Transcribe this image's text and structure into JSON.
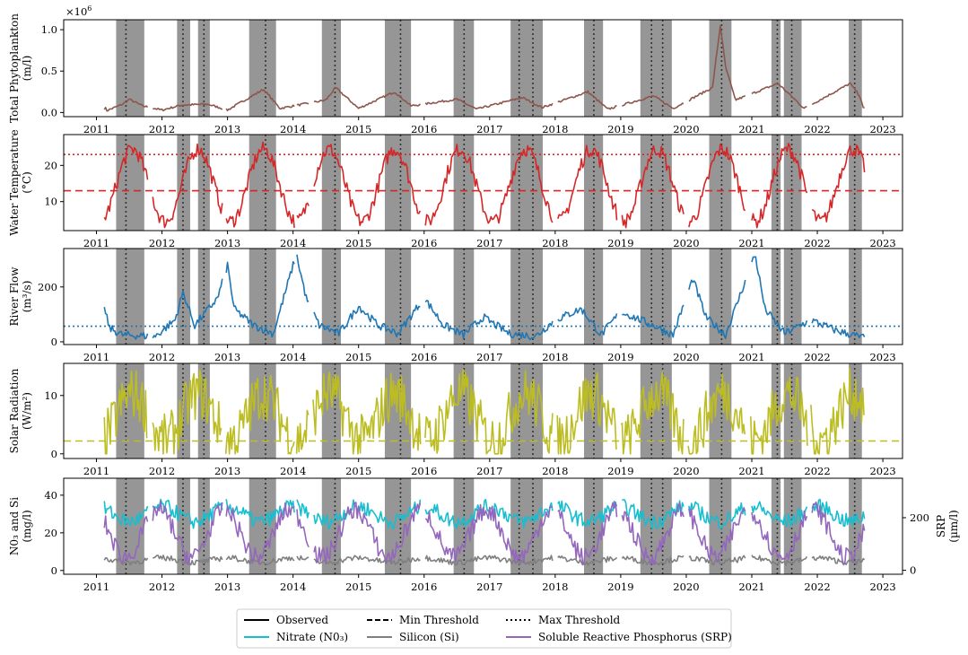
{
  "chart_data": [
    {
      "type": "line",
      "title": "",
      "xlabel": "",
      "ylabel": "Total Phytoplankton",
      "yunit": "(m/l)",
      "yscale_label": "×10^6",
      "x_ticks": [
        "2011",
        "2012",
        "2013",
        "2014",
        "2015",
        "2016",
        "2017",
        "2018",
        "2019",
        "2020",
        "2021",
        "2022",
        "2023"
      ],
      "y_ticks": [
        "0.0",
        "0.5",
        "1.0"
      ],
      "ylim": [
        -0.05,
        1.12
      ],
      "xlim": [
        2010.5,
        2023.3
      ],
      "grid": false,
      "series": [
        {
          "color": "#8c564b",
          "style": "observed",
          "values_summary": "baseline ~0.02-0.05 with seasonal peaks",
          "points": [
            [
              2011.15,
              0.02
            ],
            [
              2011.4,
              0.1
            ],
            [
              2011.5,
              0.16
            ],
            [
              2011.7,
              0.08
            ],
            [
              2012.0,
              0.03
            ],
            [
              2012.3,
              0.09
            ],
            [
              2012.7,
              0.1
            ],
            [
              2013.0,
              0.03
            ],
            [
              2013.55,
              0.28
            ],
            [
              2013.8,
              0.05
            ],
            [
              2014.5,
              0.15
            ],
            [
              2014.65,
              0.3
            ],
            [
              2015.0,
              0.05
            ],
            [
              2015.55,
              0.25
            ],
            [
              2015.8,
              0.08
            ],
            [
              2016.5,
              0.16
            ],
            [
              2016.8,
              0.04
            ],
            [
              2017.5,
              0.18
            ],
            [
              2017.8,
              0.06
            ],
            [
              2018.5,
              0.25
            ],
            [
              2018.8,
              0.04
            ],
            [
              2019.5,
              0.2
            ],
            [
              2019.8,
              0.05
            ],
            [
              2020.4,
              0.3
            ],
            [
              2020.52,
              1.05
            ],
            [
              2020.6,
              0.55
            ],
            [
              2020.75,
              0.15
            ],
            [
              2021.4,
              0.35
            ],
            [
              2021.8,
              0.05
            ],
            [
              2022.5,
              0.35
            ],
            [
              2022.65,
              0.2
            ],
            [
              2022.7,
              0.05
            ]
          ]
        }
      ],
      "reference_lines": []
    },
    {
      "type": "line",
      "title": "",
      "xlabel": "",
      "ylabel": "Water Temperature",
      "yunit": "(°C)",
      "x_ticks": [
        "2011",
        "2012",
        "2013",
        "2014",
        "2015",
        "2016",
        "2017",
        "2018",
        "2019",
        "2020",
        "2021",
        "2022",
        "2023"
      ],
      "y_ticks": [
        "10",
        "20"
      ],
      "ylim": [
        2,
        28.5
      ],
      "xlim": [
        2010.5,
        2023.3
      ],
      "grid": false,
      "series": [
        {
          "color": "#d62728",
          "style": "observed",
          "pattern": "annual sinusoid, minima ~4-7 in Jan-Feb, maxima ~20-27 in Jul-Aug"
        }
      ],
      "reference_lines": [
        {
          "value": 23,
          "style": "max",
          "color": "#d62728"
        },
        {
          "value": 13,
          "style": "min",
          "color": "#d62728"
        }
      ]
    },
    {
      "type": "line",
      "title": "",
      "xlabel": "",
      "ylabel": "River Flow",
      "yunit": "(m³/s)",
      "x_ticks": [
        "2011",
        "2012",
        "2013",
        "2014",
        "2015",
        "2016",
        "2017",
        "2018",
        "2019",
        "2020",
        "2021",
        "2022",
        "2023"
      ],
      "y_ticks": [
        "0",
        "200"
      ],
      "ylim": [
        -10,
        340
      ],
      "xlim": [
        2010.5,
        2023.3
      ],
      "grid": false,
      "series": [
        {
          "color": "#1f77b4",
          "style": "observed",
          "points": [
            [
              2011.12,
              120
            ],
            [
              2011.2,
              50
            ],
            [
              2011.4,
              25
            ],
            [
              2011.9,
              20
            ],
            [
              2012.2,
              80
            ],
            [
              2012.32,
              180
            ],
            [
              2012.5,
              60
            ],
            [
              2012.85,
              160
            ],
            [
              2013.0,
              280
            ],
            [
              2013.1,
              120
            ],
            [
              2013.4,
              60
            ],
            [
              2013.7,
              30
            ],
            [
              2014.05,
              320
            ],
            [
              2014.2,
              160
            ],
            [
              2014.4,
              60
            ],
            [
              2014.7,
              30
            ],
            [
              2015.0,
              130
            ],
            [
              2015.3,
              60
            ],
            [
              2015.6,
              30
            ],
            [
              2016.0,
              160
            ],
            [
              2016.3,
              60
            ],
            [
              2016.6,
              25
            ],
            [
              2016.9,
              90
            ],
            [
              2017.3,
              30
            ],
            [
              2017.7,
              20
            ],
            [
              2018.0,
              80
            ],
            [
              2018.4,
              120
            ],
            [
              2018.7,
              25
            ],
            [
              2019.0,
              110
            ],
            [
              2019.5,
              60
            ],
            [
              2019.8,
              25
            ],
            [
              2020.1,
              230
            ],
            [
              2020.3,
              90
            ],
            [
              2020.6,
              25
            ],
            [
              2021.05,
              320
            ],
            [
              2021.2,
              120
            ],
            [
              2021.5,
              30
            ],
            [
              2021.9,
              80
            ],
            [
              2022.3,
              40
            ],
            [
              2022.7,
              15
            ]
          ]
        }
      ],
      "reference_lines": [
        {
          "value": 57,
          "style": "max",
          "color": "#1f77b4"
        }
      ]
    },
    {
      "type": "line",
      "title": "",
      "xlabel": "",
      "ylabel": "Solar Radiation",
      "yunit": "(W/m²)",
      "x_ticks": [
        "2011",
        "2012",
        "2013",
        "2014",
        "2015",
        "2016",
        "2017",
        "2018",
        "2019",
        "2020",
        "2021",
        "2022",
        "2023"
      ],
      "y_ticks": [
        "0",
        "10"
      ],
      "ylim": [
        -0.8,
        15.5
      ],
      "xlim": [
        2010.5,
        2023.3
      ],
      "grid": false,
      "series": [
        {
          "color": "#bcbd22",
          "style": "observed",
          "pattern": "noisy, seasonal peaks ~10-14 in summer, lows ~0-2 in winter"
        }
      ],
      "reference_lines": [
        {
          "value": 2.2,
          "style": "min",
          "color": "#bcbd22"
        }
      ]
    },
    {
      "type": "line",
      "title": "",
      "xlabel": "",
      "ylabel": "N0₃ and Si",
      "yunit": "(mg/l)",
      "y2label": "SRP",
      "y2unit": "(µm/l)",
      "x_ticks": [
        "2011",
        "2012",
        "2013",
        "2014",
        "2015",
        "2016",
        "2017",
        "2018",
        "2019",
        "2020",
        "2021",
        "2022",
        "2023"
      ],
      "y_ticks": [
        "0",
        "20",
        "40"
      ],
      "y2_ticks": [
        "0",
        "200"
      ],
      "ylim": [
        -2,
        49
      ],
      "y2lim": [
        -15,
        350
      ],
      "xlim": [
        2010.5,
        2023.3
      ],
      "grid": false,
      "series": [
        {
          "name": "Nitrate (N0₃)",
          "color": "#17becf",
          "axis": "left",
          "pattern": "~25-40 mg/l, dipping in summer"
        },
        {
          "name": "Silicon (Si)",
          "color": "#7f7f7f",
          "axis": "left",
          "pattern": "~4-8 mg/l, fairly flat"
        },
        {
          "name": "Soluble Reactive Phosphorus (SRP)",
          "color": "#9467bd",
          "axis": "right",
          "pattern": "~10-280 µm/l, large seasonal swings"
        }
      ],
      "reference_lines": []
    }
  ],
  "shared": {
    "x_start_year": 2010.5,
    "x_end_year": 2023.3,
    "shaded_periods": [
      [
        2011.3,
        2011.73
      ],
      [
        2012.23,
        2012.43
      ],
      [
        2012.55,
        2012.73
      ],
      [
        2013.33,
        2013.74
      ],
      [
        2014.44,
        2014.73
      ],
      [
        2015.4,
        2015.8
      ],
      [
        2016.45,
        2016.76
      ],
      [
        2017.32,
        2017.81
      ],
      [
        2018.44,
        2018.73
      ],
      [
        2019.3,
        2019.78
      ],
      [
        2020.35,
        2020.69
      ],
      [
        2021.3,
        2021.44
      ],
      [
        2021.49,
        2021.76
      ],
      [
        2022.48,
        2022.68
      ]
    ],
    "event_markers": [
      2011.45,
      2012.32,
      2012.64,
      2013.58,
      2014.64,
      2015.64,
      2016.61,
      2017.45,
      2017.66,
      2018.59,
      2019.47,
      2019.64,
      2020.54,
      2021.39,
      2021.61,
      2022.57
    ],
    "shade_color": "#969696",
    "marker_color": "#333333"
  },
  "legend": {
    "placement": "bottom-center",
    "entries": [
      {
        "label": "Observed",
        "style": "solid",
        "color": "#000000"
      },
      {
        "label": "Min Threshold",
        "style": "dashed",
        "color": "#000000"
      },
      {
        "label": "Max Threshold",
        "style": "dotted",
        "color": "#000000"
      },
      {
        "label": "Nitrate (N0₃)",
        "style": "solid",
        "color": "#17becf"
      },
      {
        "label": "Silicon (Si)",
        "style": "solid",
        "color": "#7f7f7f"
      },
      {
        "label": "Soluble Reactive Phosphorus (SRP)",
        "style": "solid",
        "color": "#9467bd"
      }
    ]
  }
}
